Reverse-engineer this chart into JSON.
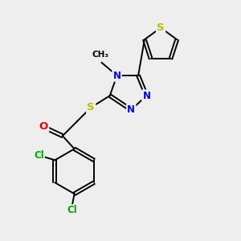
{
  "background_color": "#eeeeee",
  "bond_color": "#000000",
  "atom_colors": {
    "S": "#bbbb00",
    "N": "#0000ee",
    "O": "#ee0000",
    "Cl": "#00aa00",
    "C": "#000000"
  },
  "font_size_atom": 8.5,
  "font_size_methyl": 7.5,
  "figsize": [
    3.0,
    3.0
  ],
  "dpi": 100
}
